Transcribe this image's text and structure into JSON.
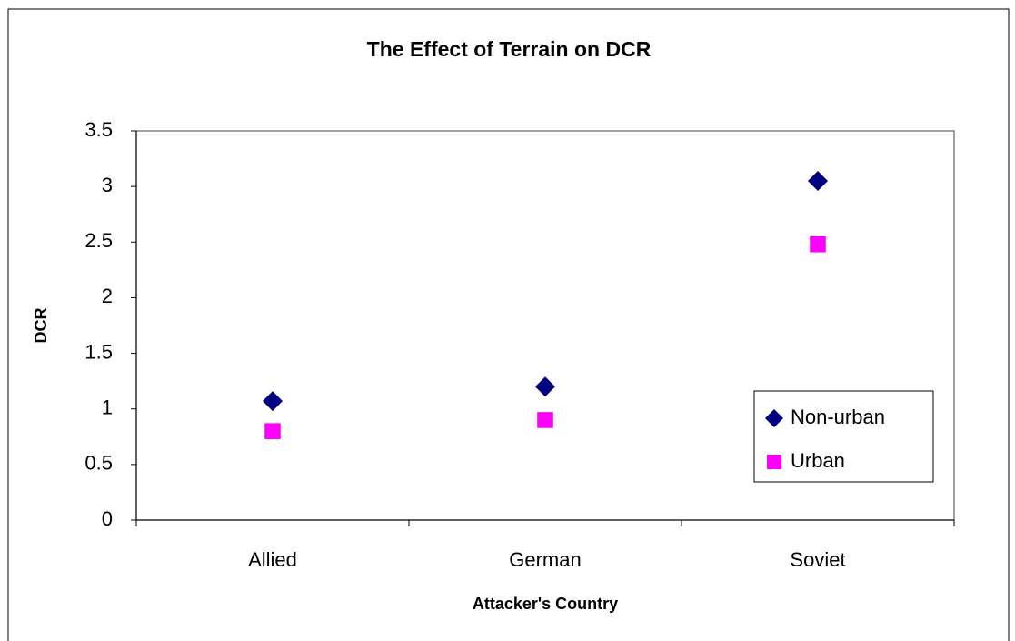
{
  "chart_data": {
    "type": "scatter",
    "title": "The Effect of Terrain on DCR",
    "x_label": "Attacker's Country",
    "y_label": "DCR",
    "categories": [
      "Allied",
      "German",
      "Soviet"
    ],
    "series": [
      {
        "name": "Non-urban",
        "color": "#000080",
        "marker": "diamond",
        "values": [
          1.07,
          1.2,
          3.05
        ]
      },
      {
        "name": "Urban",
        "color": "#ff00ff",
        "marker": "square",
        "values": [
          0.8,
          0.9,
          2.48
        ]
      }
    ],
    "ylim": [
      0,
      3.5
    ],
    "yticks": [
      0,
      0.5,
      1,
      1.5,
      2,
      2.5,
      3,
      3.5
    ],
    "grid": false,
    "legend": "right"
  }
}
